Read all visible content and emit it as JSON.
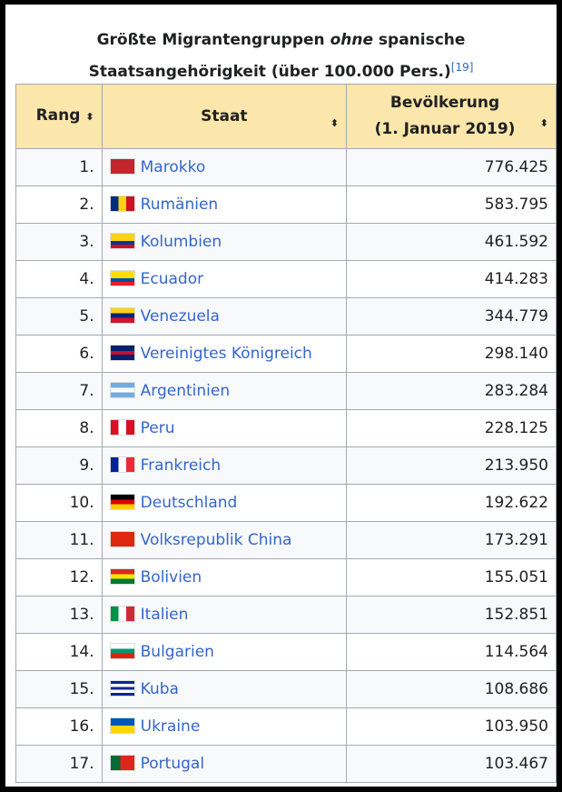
{
  "caption": {
    "before": "Größte Migrantengruppen ",
    "em": "ohne",
    "after": " spanische Staatsangehörigkeit (über 100.000 Pers.)",
    "ref": "[19]"
  },
  "headers": {
    "rang": "Rang",
    "staat": "Staat",
    "bev1": "Bevölkerung",
    "bev2": "(1. Januar 2019)",
    "sort_icon": "⬍"
  },
  "rows": [
    {
      "rank": "1.",
      "country": "Marokko",
      "pop": "776.425",
      "flag": "linear-gradient(#c1272d,#c1272d)"
    },
    {
      "rank": "2.",
      "country": "Rumänien",
      "pop": "583.795",
      "flag": "linear-gradient(90deg,#002b7f 33%,#fcd116 33% 66%,#ce1126 66%)"
    },
    {
      "rank": "3.",
      "country": "Kolumbien",
      "pop": "461.592",
      "flag": "linear-gradient(#fcd116 50%,#003893 50% 75%,#ce1126 75%)"
    },
    {
      "rank": "4.",
      "country": "Ecuador",
      "pop": "414.283",
      "flag": "linear-gradient(#ffdd00 50%,#034ea2 50% 75%,#ed1c24 75%)"
    },
    {
      "rank": "5.",
      "country": "Venezuela",
      "pop": "344.779",
      "flag": "linear-gradient(#fcd116 33%,#00247d 33% 66%,#cf142b 66%)"
    },
    {
      "rank": "6.",
      "country": "Vereinigtes Königreich",
      "pop": "298.140",
      "flag": "linear-gradient(#012169 38%,#c8102e 38% 62%,#012169 62%)"
    },
    {
      "rank": "7.",
      "country": "Argentinien",
      "pop": "283.284",
      "flag": "linear-gradient(#74acdf 33%,#fff 33% 66%,#74acdf 66%)"
    },
    {
      "rank": "8.",
      "country": "Peru",
      "pop": "228.125",
      "flag": "linear-gradient(90deg,#d91023 33%,#fff 33% 66%,#d91023 66%)"
    },
    {
      "rank": "9.",
      "country": "Frankreich",
      "pop": "213.950",
      "flag": "linear-gradient(90deg,#002395 33%,#fff 33% 66%,#ed2939 66%)"
    },
    {
      "rank": "10.",
      "country": "Deutschland",
      "pop": "192.622",
      "flag": "linear-gradient(#000 33%,#dd0000 33% 66%,#ffce00 66%)"
    },
    {
      "rank": "11.",
      "country": "Volksrepublik China",
      "pop": "173.291",
      "flag": "linear-gradient(#de2910,#de2910)"
    },
    {
      "rank": "12.",
      "country": "Bolivien",
      "pop": "155.051",
      "flag": "linear-gradient(#d52b1e 33%,#f9e300 33% 66%,#007934 66%)"
    },
    {
      "rank": "13.",
      "country": "Italien",
      "pop": "152.851",
      "flag": "linear-gradient(90deg,#009246 33%,#fff 33% 66%,#ce2b37 66%)"
    },
    {
      "rank": "14.",
      "country": "Bulgarien",
      "pop": "114.564",
      "flag": "linear-gradient(#fff 33%,#00966e 33% 66%,#d62612 66%)"
    },
    {
      "rank": "15.",
      "country": "Kuba",
      "pop": "108.686",
      "flag": "linear-gradient(#002a8f 20%,#fff 20% 40%,#002a8f 40% 60%,#fff 60% 80%,#002a8f 80%)"
    },
    {
      "rank": "16.",
      "country": "Ukraine",
      "pop": "103.950",
      "flag": "linear-gradient(#0057b7 50%,#ffd700 50%)"
    },
    {
      "rank": "17.",
      "country": "Portugal",
      "pop": "103.467",
      "flag": "linear-gradient(90deg,#046a38 40%,#da291c 40%)"
    }
  ]
}
